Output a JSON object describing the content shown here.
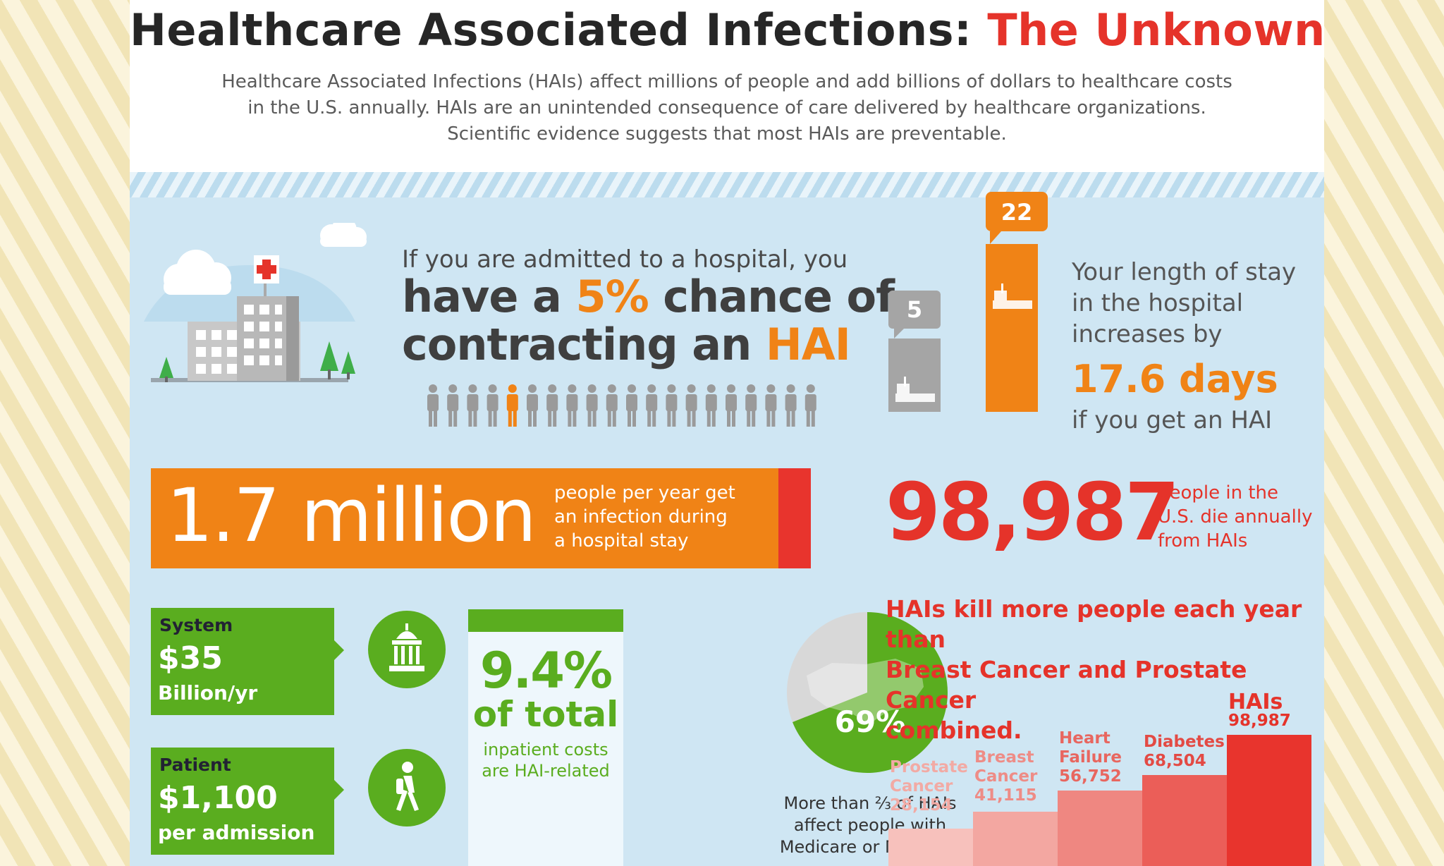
{
  "header": {
    "title_main": "Healthcare Associated Infections: ",
    "title_accent": "The Unknown Killer",
    "intro_line1": "Healthcare Associated Infections (HAIs) affect millions of people and add billions of dollars to healthcare costs",
    "intro_line2": "in the U.S. annually. HAIs are an unintended consequence of care delivered by healthcare organizations.",
    "intro_line3": "Scientific evidence suggests that most HAIs are preventable."
  },
  "admission": {
    "line1": "If you are admitted to a hospital, you",
    "line2_pre": "have a ",
    "line2_pct": "5%",
    "line2_post": " chance of",
    "line3_pre": "contracting an ",
    "line3_hai": "HAI",
    "people_total": 20,
    "people_highlighted_index": 4,
    "icon": "hospital-building-icon"
  },
  "stay": {
    "normal_days": "5",
    "hai_days": "22",
    "line1": "Your length of stay",
    "line2": "in the hospital",
    "line3": "increases by",
    "days": "17.6 days",
    "line5": "if you get an HAI"
  },
  "stats": {
    "million_number": "1.7 million",
    "million_line1": "people per year get",
    "million_line2": "an infection during",
    "million_line3": "a hospital stay",
    "deaths_number": "98,987",
    "deaths_line1": "people in the",
    "deaths_line2": "U.S. die annually",
    "deaths_line3": "from HAIs"
  },
  "costs": {
    "system_label": "System",
    "system_amount": "$35",
    "system_unit": "Billion/yr",
    "system_icon": "government-building-icon",
    "patient_label": "Patient",
    "patient_amount": "$1,100",
    "patient_unit": "per admission",
    "patient_icon": "walking-person-icon",
    "pct_value": "9.4%",
    "pct_of": "of total",
    "pct_sub1": "inpatient costs",
    "pct_sub2": "are HAI-related"
  },
  "medicare": {
    "pie_share": 69,
    "pie_label": "69%",
    "line1": "More than ⅔ of HAIs",
    "line2": "affect people with",
    "line3": "Medicare or Medicaid",
    "icon": "us-map-dollar-icon"
  },
  "comparison": {
    "line1": "HAIs kill more people each year than",
    "line2": "Breast Cancer and Prostate Cancer",
    "line3": "combined.",
    "chart_data": {
      "type": "bar",
      "categories": [
        "Prostate Cancer",
        "Breast Cancer",
        "Heart Failure",
        "Diabetes",
        "HAIs"
      ],
      "values": [
        28154,
        41115,
        56752,
        68504,
        98987
      ],
      "labels": [
        {
          "l1": "Prostate",
          "l2": "Cancer",
          "v": "28,154"
        },
        {
          "l1": "Breast",
          "l2": "Cancer",
          "v": "41,115"
        },
        {
          "l1": "Heart",
          "l2": "Failure",
          "v": "56,752"
        },
        {
          "l1": "Diabetes",
          "l2": "",
          "v": "68,504"
        },
        {
          "l1": "HAIs",
          "l2": "",
          "v": "98,987"
        }
      ],
      "colors": [
        "#f7c1bc",
        "#f3a7a1",
        "#ef8781",
        "#eb5e58",
        "#e8342d"
      ],
      "label_colors": [
        "#f2aaa4",
        "#ee8c86",
        "#e8665f",
        "#e34a44",
        "#e5332a"
      ]
    }
  }
}
